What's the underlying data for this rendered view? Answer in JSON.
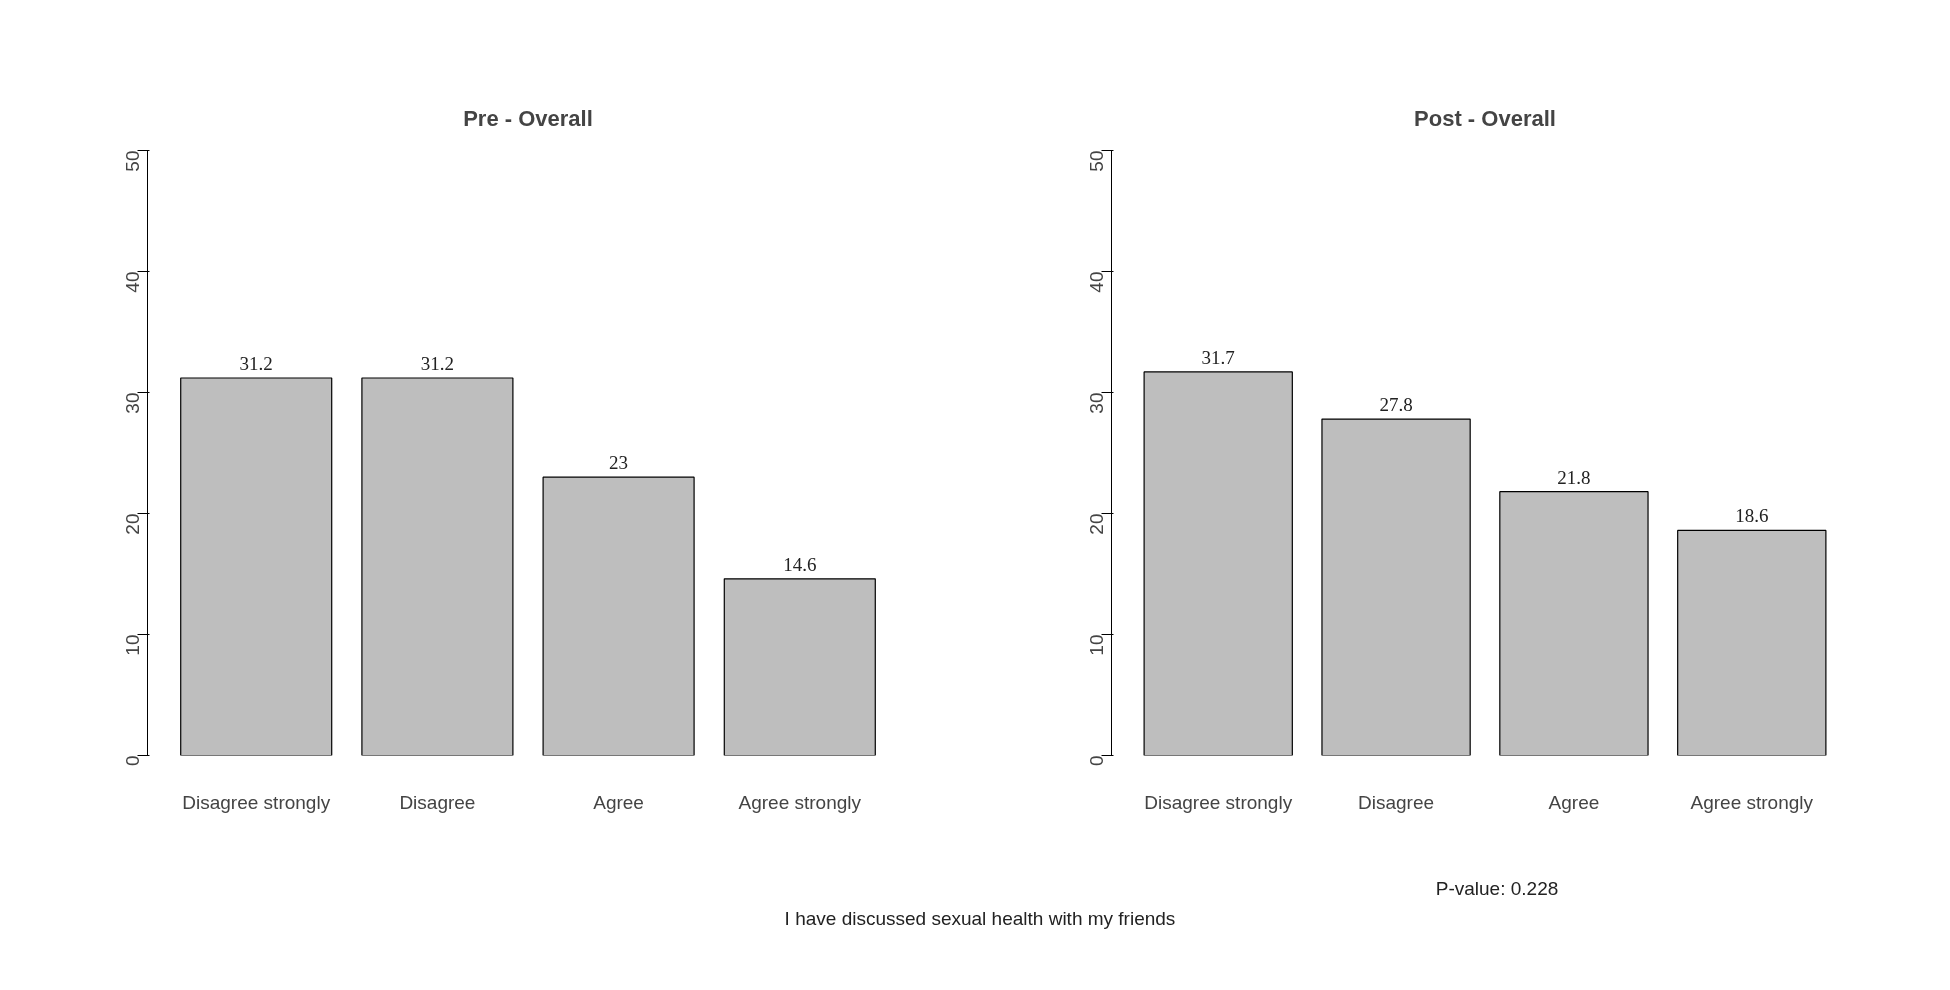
{
  "chart_data": [
    {
      "type": "bar",
      "title": "Pre - Overall",
      "categories": [
        "Disagree strongly",
        "Disagree",
        "Agree",
        "Agree strongly"
      ],
      "values": [
        31.2,
        31.2,
        23,
        14.6
      ],
      "color": "#bebebe",
      "ylim": [
        0,
        50
      ],
      "yticks": [
        0,
        10,
        20,
        30,
        40,
        50
      ],
      "grid": false,
      "data_labels": true
    },
    {
      "type": "bar",
      "title": "Post - Overall",
      "categories": [
        "Disagree strongly",
        "Disagree",
        "Agree",
        "Agree strongly"
      ],
      "values": [
        31.7,
        27.8,
        21.8,
        18.6
      ],
      "color": "#bebebe",
      "ylim": [
        0,
        50
      ],
      "yticks": [
        0,
        10,
        20,
        30,
        40,
        50
      ],
      "grid": false,
      "data_labels": true,
      "annotations": [
        "P-value: 0.228",
        "I have discussed sexual health with my friends"
      ]
    }
  ]
}
